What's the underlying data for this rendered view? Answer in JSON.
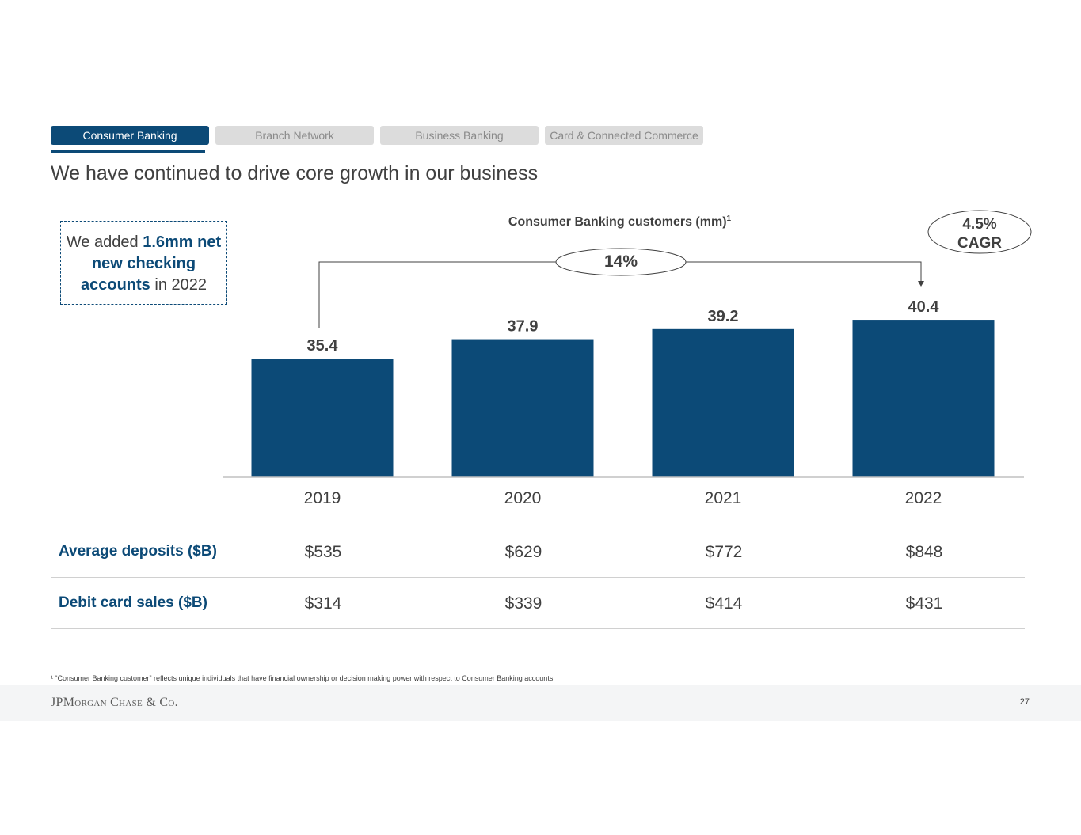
{
  "tabs": [
    {
      "label": "Consumer Banking",
      "active": true
    },
    {
      "label": "Branch Network",
      "active": false
    },
    {
      "label": "Business Banking",
      "active": false
    },
    {
      "label": "Card & Connected Commerce",
      "active": false
    }
  ],
  "title": "We have continued to drive core growth in our business",
  "callout": {
    "prefix": "We added ",
    "highlight": "1.6mm net new checking accounts",
    "suffix": " in 2022"
  },
  "cagr": {
    "value": "4.5%",
    "label": "CAGR"
  },
  "growth_label": "14%",
  "chart_data": {
    "type": "bar",
    "title": "Consumer Banking customers (mm)",
    "title_footnote": "1",
    "categories": [
      "2019",
      "2020",
      "2021",
      "2022"
    ],
    "values": [
      35.4,
      37.9,
      39.2,
      40.4
    ],
    "value_labels": [
      "35.4",
      "37.9",
      "39.2",
      "40.4"
    ],
    "xlabel": "",
    "ylabel": "",
    "grid": false,
    "bar_color": "#0c4a77"
  },
  "table": {
    "rows": [
      {
        "label": "Average deposits ($B)",
        "values": [
          "$535",
          "$629",
          "$772",
          "$848"
        ]
      },
      {
        "label": "Debit card sales ($B)",
        "values": [
          "$314",
          "$339",
          "$414",
          "$431"
        ]
      }
    ]
  },
  "footnote": "¹ “Consumer Banking customer” reflects unique individuals that have financial ownership or decision making power with respect to Consumer Banking accounts",
  "footer": {
    "logo": "JPMorgan Chase & Co.",
    "page_number": "27"
  },
  "colors": {
    "brand": "#0c4a77",
    "text": "#404040",
    "tab_inactive": "#dcdcdc"
  }
}
